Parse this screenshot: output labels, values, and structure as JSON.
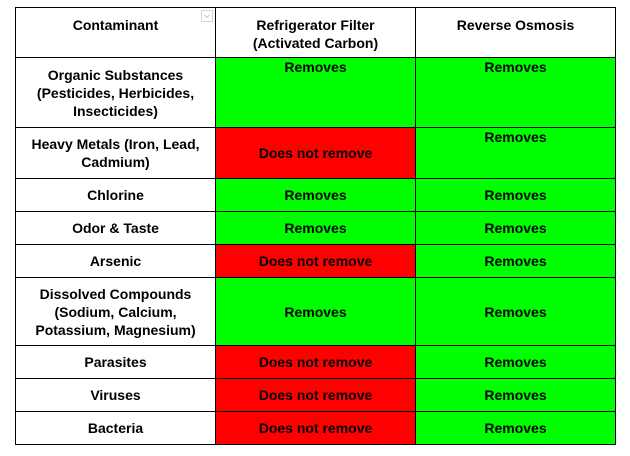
{
  "headers": {
    "contaminant": "Contaminant",
    "refrigerator_line1": "Refrigerator Filter",
    "refrigerator_line2": "(Activated Carbon)",
    "reverse_osmosis": "Reverse Osmosis"
  },
  "rows": [
    {
      "contaminant": [
        "Organic Substances",
        "(Pesticides, Herbicides,",
        "Insecticides)"
      ],
      "refrigerator": "Removes",
      "reverse_osmosis": "Removes"
    },
    {
      "contaminant": [
        "Heavy Metals (Iron, Lead,",
        "Cadmium)"
      ],
      "refrigerator": "Does not remove",
      "reverse_osmosis": "Removes"
    },
    {
      "contaminant": [
        "Chlorine"
      ],
      "refrigerator": "Removes",
      "reverse_osmosis": "Removes"
    },
    {
      "contaminant": [
        "Odor & Taste"
      ],
      "refrigerator": "Removes",
      "reverse_osmosis": "Removes"
    },
    {
      "contaminant": [
        "Arsenic"
      ],
      "refrigerator": "Does not remove",
      "reverse_osmosis": "Removes"
    },
    {
      "contaminant": [
        "Dissolved Compounds",
        "(Sodium, Calcium,",
        "Potassium, Magnesium)"
      ],
      "refrigerator": "Removes",
      "reverse_osmosis": "Removes"
    },
    {
      "contaminant": [
        "Parasites"
      ],
      "refrigerator": "Does not remove",
      "reverse_osmosis": "Removes"
    },
    {
      "contaminant": [
        "Viruses"
      ],
      "refrigerator": "Does not remove",
      "reverse_osmosis": "Removes"
    },
    {
      "contaminant": [
        "Bacteria"
      ],
      "refrigerator": "Does not remove",
      "reverse_osmosis": "Removes"
    }
  ],
  "colors": {
    "removes": "#00ff00",
    "does_not_remove": "#ff0000",
    "border": "#000000"
  },
  "icons": {
    "filter_dropdown": "chevron-down-icon"
  }
}
